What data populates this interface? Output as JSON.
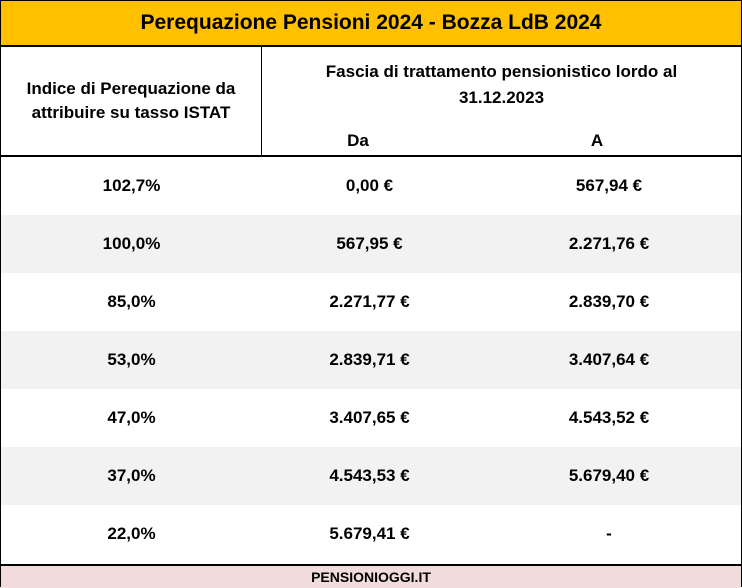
{
  "title": "Perequazione Pensioni 2024 - Bozza LdB 2024",
  "header": {
    "left_label_line1": "Indice di Perequazione da",
    "left_label_line2": "attribuire su tasso ISTAT",
    "group_label_line1": "Fascia di trattamento pensionistico lordo al",
    "group_label_line2": "31.12.2023",
    "col_from": "Da",
    "col_to": "A"
  },
  "rows": [
    {
      "index": "102,7%",
      "from": "0,00 €",
      "to": "567,94 €"
    },
    {
      "index": "100,0%",
      "from": "567,95 €",
      "to": "2.271,76 €"
    },
    {
      "index": "85,0%",
      "from": "2.271,77 €",
      "to": "2.839,70 €"
    },
    {
      "index": "53,0%",
      "from": "2.839,71 €",
      "to": "3.407,64 €"
    },
    {
      "index": "47,0%",
      "from": "3.407,65 €",
      "to": "4.543,52 €"
    },
    {
      "index": "37,0%",
      "from": "4.543,53 €",
      "to": "5.679,40 €"
    },
    {
      "index": "22,0%",
      "from": "5.679,41 €",
      "to": "-"
    }
  ],
  "footer": "PENSIONIOGGI.IT",
  "colors": {
    "title_bg": "#ffc000",
    "alt_row_bg": "#f2f2f2",
    "footer_bg": "#f2dcdb"
  }
}
